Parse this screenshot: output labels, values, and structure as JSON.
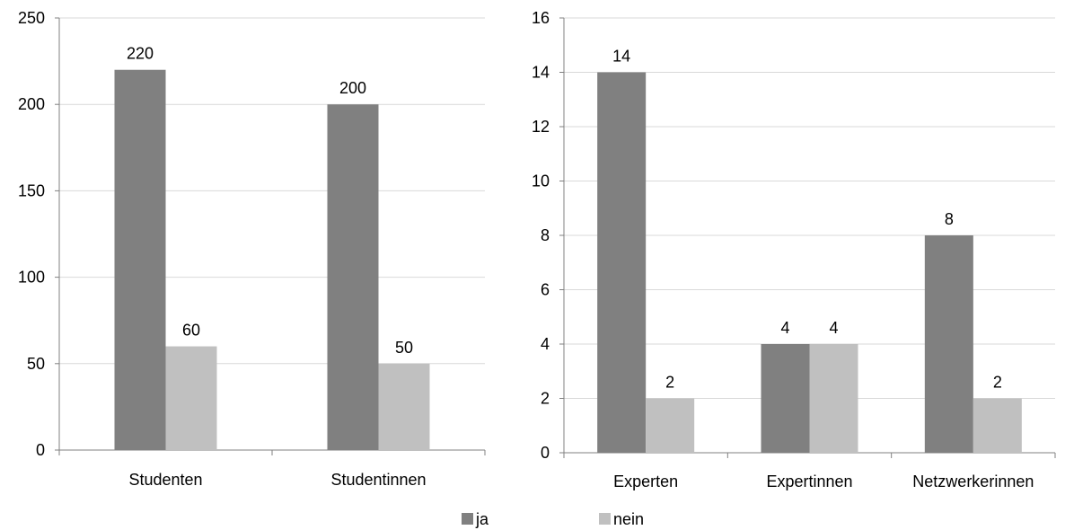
{
  "colors": {
    "ja": "#808080",
    "nein": "#c0c0c0",
    "grid": "#d9d9d9",
    "axis": "#808080"
  },
  "legend": {
    "position": "bottom-center",
    "items": [
      {
        "key": "ja",
        "label": "ja",
        "color": "#808080"
      },
      {
        "key": "nein",
        "label": "nein",
        "color": "#c0c0c0"
      }
    ]
  },
  "chart_data": [
    {
      "type": "bar",
      "categories": [
        "Studenten",
        "Studentinnen"
      ],
      "series": [
        {
          "name": "ja",
          "values": [
            220,
            200
          ]
        },
        {
          "name": "nein",
          "values": [
            60,
            50
          ]
        }
      ],
      "ylim": [
        0,
        250
      ],
      "yticks": [
        0,
        50,
        100,
        150,
        200,
        250
      ],
      "grid": true
    },
    {
      "type": "bar",
      "categories": [
        "Experten",
        "Expertinnen",
        "Netzwerkerinnen"
      ],
      "series": [
        {
          "name": "ja",
          "values": [
            14,
            4,
            8
          ]
        },
        {
          "name": "nein",
          "values": [
            2,
            4,
            2
          ]
        }
      ],
      "ylim": [
        0,
        16
      ],
      "yticks": [
        0,
        2,
        4,
        6,
        8,
        10,
        12,
        14,
        16
      ],
      "grid": true
    }
  ]
}
